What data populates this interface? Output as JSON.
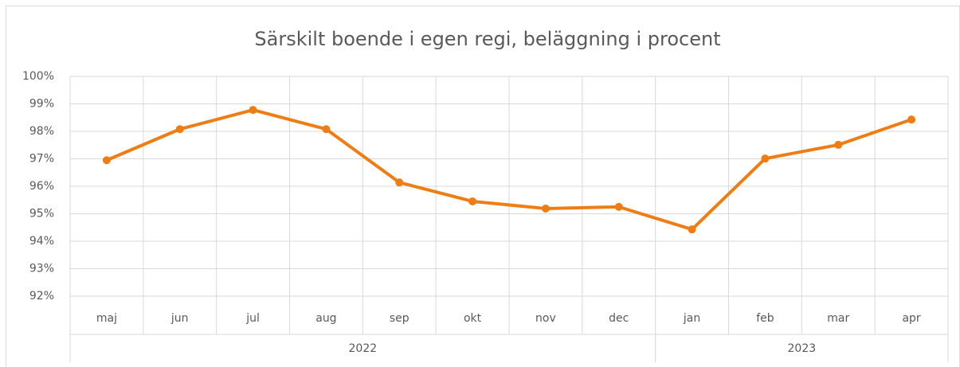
{
  "chart_data": {
    "type": "line",
    "title": "Särskilt boende i egen regi, beläggning i procent",
    "groups": [
      {
        "name": "2022",
        "categories": [
          "maj",
          "jun",
          "jul",
          "aug",
          "sep",
          "okt",
          "nov",
          "dec"
        ]
      },
      {
        "name": "2023",
        "categories": [
          "jan",
          "feb",
          "mar",
          "apr"
        ]
      }
    ],
    "values": [
      96.95,
      98.08,
      98.78,
      98.08,
      96.14,
      95.45,
      95.19,
      95.25,
      94.43,
      97.01,
      97.51,
      98.43
    ],
    "color": "#ed7d14",
    "ylim": [
      92,
      100
    ],
    "yticks": [
      {
        "value": 92,
        "label": "92%"
      },
      {
        "value": 93,
        "label": "93%"
      },
      {
        "value": 94,
        "label": "94%"
      },
      {
        "value": 95,
        "label": "95%"
      },
      {
        "value": 96,
        "label": "96%"
      },
      {
        "value": 97,
        "label": "97%"
      },
      {
        "value": 98,
        "label": "98%"
      },
      {
        "value": 99,
        "label": "99%"
      },
      {
        "value": 100,
        "label": "100%"
      }
    ],
    "grid": true
  }
}
